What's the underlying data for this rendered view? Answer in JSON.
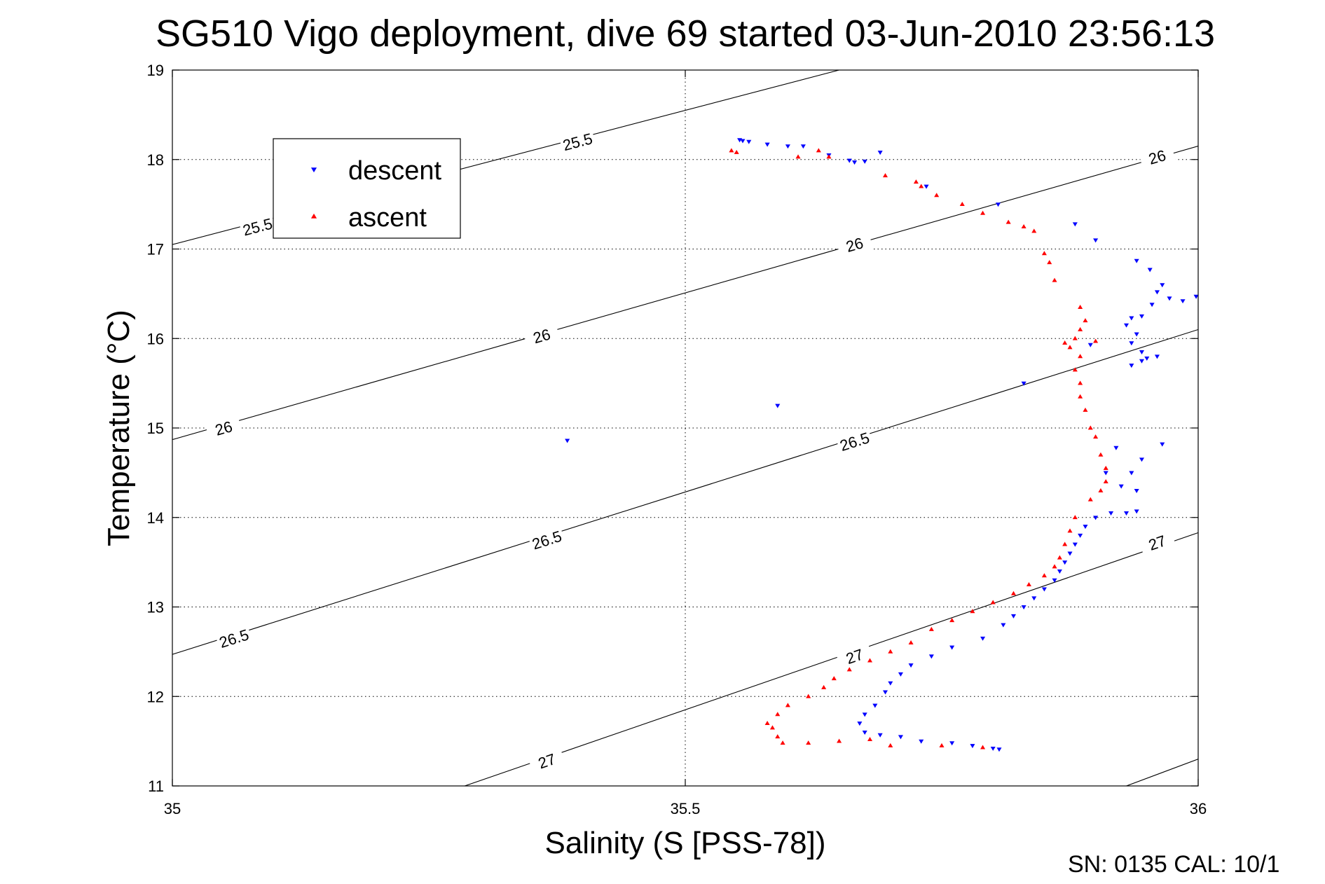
{
  "chart_data": {
    "type": "scatter",
    "title": "SG510 Vigo deployment, dive 69 started 03-Jun-2010 23:56:13",
    "xlabel": "Salinity (S [PSS-78])",
    "ylabel": "Temperature (°C)",
    "xlim": [
      35,
      36
    ],
    "ylim": [
      11,
      19
    ],
    "x_ticks": [
      35,
      35.5,
      36
    ],
    "x_tick_labels": [
      "35",
      "35.5",
      "36"
    ],
    "y_ticks": [
      11,
      12,
      13,
      14,
      15,
      16,
      17,
      18,
      19
    ],
    "y_tick_labels": [
      "11",
      "12",
      "13",
      "14",
      "15",
      "16",
      "17",
      "18",
      "19"
    ],
    "grid": true,
    "legend_position": "top-left",
    "legend": [
      {
        "label": "descent",
        "color": "#0000ff",
        "marker": "triangle-down"
      },
      {
        "label": "ascent",
        "color": "#ff0000",
        "marker": "triangle-up"
      }
    ],
    "density_contours": [
      {
        "level": "25.5",
        "points": [
          [
            35.0,
            17.05
          ],
          [
            35.65,
            19.0
          ]
        ],
        "labels": [
          [
            35.083,
            17.25
          ],
          [
            35.395,
            18.2
          ]
        ]
      },
      {
        "level": "26",
        "points": [
          [
            35.0,
            14.87
          ],
          [
            36.0,
            18.15
          ]
        ],
        "labels": [
          [
            35.05,
            15.0
          ],
          [
            35.36,
            16.03
          ],
          [
            35.665,
            17.05
          ],
          [
            35.96,
            18.03
          ]
        ]
      },
      {
        "level": "26.5",
        "points": [
          [
            35.0,
            12.47
          ],
          [
            36.0,
            16.1
          ]
        ],
        "labels": [
          [
            35.06,
            12.65
          ],
          [
            35.365,
            13.75
          ],
          [
            35.665,
            14.85
          ]
        ]
      },
      {
        "level": "27",
        "points": [
          [
            35.285,
            11.0
          ],
          [
            36.0,
            13.83
          ]
        ],
        "labels": [
          [
            35.365,
            11.28
          ],
          [
            35.665,
            12.45
          ],
          [
            35.96,
            13.72
          ]
        ]
      },
      {
        "level": "",
        "points": [
          [
            35.93,
            11.0
          ],
          [
            36.0,
            11.3
          ]
        ],
        "labels": []
      }
    ],
    "series": [
      {
        "name": "descent",
        "color": "#0000ff",
        "marker": "triangle-down",
        "points": [
          [
            35.553,
            18.22
          ],
          [
            35.556,
            18.21
          ],
          [
            35.562,
            18.2
          ],
          [
            35.58,
            18.17
          ],
          [
            35.6,
            18.15
          ],
          [
            35.615,
            18.15
          ],
          [
            35.64,
            18.05
          ],
          [
            35.66,
            17.99
          ],
          [
            35.665,
            17.97
          ],
          [
            35.675,
            17.98
          ],
          [
            35.69,
            18.08
          ],
          [
            35.735,
            17.7
          ],
          [
            35.805,
            17.5
          ],
          [
            35.88,
            17.28
          ],
          [
            35.9,
            17.1
          ],
          [
            35.94,
            16.87
          ],
          [
            35.953,
            16.77
          ],
          [
            35.965,
            16.6
          ],
          [
            35.972,
            16.45
          ],
          [
            35.985,
            16.42
          ],
          [
            35.998,
            16.47
          ],
          [
            35.96,
            16.52
          ],
          [
            35.955,
            16.38
          ],
          [
            35.945,
            16.25
          ],
          [
            35.935,
            16.23
          ],
          [
            35.93,
            16.15
          ],
          [
            35.94,
            16.05
          ],
          [
            35.935,
            15.95
          ],
          [
            35.945,
            15.85
          ],
          [
            35.95,
            15.78
          ],
          [
            35.96,
            15.8
          ],
          [
            35.945,
            15.75
          ],
          [
            35.935,
            15.7
          ],
          [
            35.895,
            15.93
          ],
          [
            35.83,
            15.5
          ],
          [
            35.59,
            15.25
          ],
          [
            35.385,
            14.86
          ],
          [
            35.965,
            14.82
          ],
          [
            35.945,
            14.65
          ],
          [
            35.935,
            14.5
          ],
          [
            35.92,
            14.78
          ],
          [
            35.91,
            14.5
          ],
          [
            35.925,
            14.35
          ],
          [
            35.94,
            14.3
          ],
          [
            35.94,
            14.07
          ],
          [
            35.93,
            14.05
          ],
          [
            35.915,
            14.05
          ],
          [
            35.9,
            14.0
          ],
          [
            35.89,
            13.9
          ],
          [
            35.885,
            13.8
          ],
          [
            35.88,
            13.7
          ],
          [
            35.875,
            13.6
          ],
          [
            35.87,
            13.5
          ],
          [
            35.865,
            13.4
          ],
          [
            35.86,
            13.3
          ],
          [
            35.85,
            13.2
          ],
          [
            35.84,
            13.1
          ],
          [
            35.83,
            13.0
          ],
          [
            35.82,
            12.9
          ],
          [
            35.81,
            12.8
          ],
          [
            35.79,
            12.65
          ],
          [
            35.76,
            12.55
          ],
          [
            35.74,
            12.45
          ],
          [
            35.72,
            12.35
          ],
          [
            35.71,
            12.25
          ],
          [
            35.7,
            12.15
          ],
          [
            35.695,
            12.05
          ],
          [
            35.685,
            11.9
          ],
          [
            35.675,
            11.8
          ],
          [
            35.67,
            11.7
          ],
          [
            35.675,
            11.6
          ],
          [
            35.69,
            11.57
          ],
          [
            35.71,
            11.55
          ],
          [
            35.73,
            11.5
          ],
          [
            35.76,
            11.48
          ],
          [
            35.78,
            11.45
          ],
          [
            35.8,
            11.42
          ],
          [
            35.806,
            11.41
          ]
        ]
      },
      {
        "name": "ascent",
        "color": "#ff0000",
        "marker": "triangle-up",
        "points": [
          [
            35.545,
            18.1
          ],
          [
            35.55,
            18.08
          ],
          [
            35.63,
            18.1
          ],
          [
            35.61,
            18.03
          ],
          [
            35.64,
            18.03
          ],
          [
            35.695,
            17.82
          ],
          [
            35.725,
            17.75
          ],
          [
            35.73,
            17.7
          ],
          [
            35.745,
            17.6
          ],
          [
            35.77,
            17.5
          ],
          [
            35.79,
            17.4
          ],
          [
            35.815,
            17.3
          ],
          [
            35.83,
            17.25
          ],
          [
            35.84,
            17.2
          ],
          [
            35.85,
            16.95
          ],
          [
            35.855,
            16.85
          ],
          [
            35.86,
            16.65
          ],
          [
            35.885,
            16.35
          ],
          [
            35.89,
            16.2
          ],
          [
            35.885,
            16.1
          ],
          [
            35.88,
            16.0
          ],
          [
            35.875,
            15.9
          ],
          [
            35.87,
            15.95
          ],
          [
            35.9,
            15.97
          ],
          [
            35.885,
            15.8
          ],
          [
            35.88,
            15.65
          ],
          [
            35.885,
            15.5
          ],
          [
            35.885,
            15.35
          ],
          [
            35.89,
            15.2
          ],
          [
            35.895,
            15.0
          ],
          [
            35.9,
            14.9
          ],
          [
            35.905,
            14.7
          ],
          [
            35.91,
            14.55
          ],
          [
            35.91,
            14.4
          ],
          [
            35.905,
            14.3
          ],
          [
            35.895,
            14.2
          ],
          [
            35.88,
            14.0
          ],
          [
            35.875,
            13.85
          ],
          [
            35.87,
            13.7
          ],
          [
            35.865,
            13.55
          ],
          [
            35.86,
            13.45
          ],
          [
            35.85,
            13.35
          ],
          [
            35.835,
            13.25
          ],
          [
            35.82,
            13.15
          ],
          [
            35.8,
            13.05
          ],
          [
            35.78,
            12.95
          ],
          [
            35.76,
            12.85
          ],
          [
            35.74,
            12.75
          ],
          [
            35.72,
            12.6
          ],
          [
            35.7,
            12.5
          ],
          [
            35.68,
            12.4
          ],
          [
            35.66,
            12.3
          ],
          [
            35.645,
            12.2
          ],
          [
            35.635,
            12.1
          ],
          [
            35.62,
            12.0
          ],
          [
            35.6,
            11.9
          ],
          [
            35.59,
            11.8
          ],
          [
            35.58,
            11.7
          ],
          [
            35.585,
            11.65
          ],
          [
            35.59,
            11.55
          ],
          [
            35.595,
            11.48
          ],
          [
            35.62,
            11.48
          ],
          [
            35.65,
            11.5
          ],
          [
            35.68,
            11.52
          ],
          [
            35.7,
            11.45
          ],
          [
            35.75,
            11.45
          ],
          [
            35.79,
            11.43
          ]
        ]
      }
    ],
    "annotation": "SN: 0135  CAL: 10/1"
  }
}
